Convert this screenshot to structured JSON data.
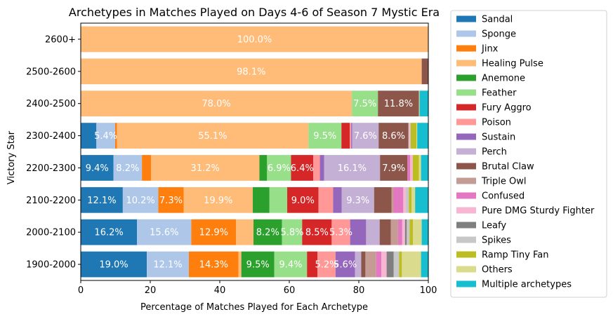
{
  "chart_data": {
    "type": "bar",
    "orientation": "horizontal",
    "stacked": true,
    "title": "Archetypes in Matches Played on Days 4-6 of Season 7 Mystic Era",
    "xlabel": "Percentage of Matches Played for Each Archetype",
    "ylabel": "Victory Star",
    "xlim": [
      0,
      100
    ],
    "xticks": [
      "0",
      "20",
      "40",
      "60",
      "80",
      "100"
    ],
    "legend_position": "outside-right",
    "categories": [
      "1900-2000",
      "2000-2100",
      "2100-2200",
      "2200-2300",
      "2300-2400",
      "2400-2500",
      "2500-2600",
      "2600+"
    ],
    "series": [
      {
        "name": "Sandal",
        "color": "#1f77b4",
        "values": [
          19.0,
          16.2,
          12.1,
          9.4,
          4.5,
          0,
          0,
          0
        ]
      },
      {
        "name": "Sponge",
        "color": "#aec7e8",
        "values": [
          12.1,
          15.6,
          10.2,
          8.2,
          5.4,
          0,
          0,
          0
        ]
      },
      {
        "name": "Jinx",
        "color": "#ff7f0e",
        "values": [
          14.3,
          12.9,
          7.3,
          2.6,
          0.5,
          0,
          0,
          0
        ]
      },
      {
        "name": "Healing Pulse",
        "color": "#ffbb78",
        "values": [
          0.8,
          5.0,
          19.9,
          31.2,
          55.1,
          78.0,
          98.1,
          100.0
        ]
      },
      {
        "name": "Anemone",
        "color": "#2ca02c",
        "values": [
          9.5,
          8.2,
          4.8,
          2.2,
          0,
          0,
          0,
          0
        ]
      },
      {
        "name": "Feather",
        "color": "#98df8a",
        "values": [
          9.4,
          5.8,
          5.1,
          6.9,
          9.5,
          7.5,
          0,
          0
        ]
      },
      {
        "name": "Fury Aggro",
        "color": "#d62728",
        "values": [
          3.0,
          8.5,
          9.0,
          6.4,
          2.4,
          0,
          0,
          0
        ]
      },
      {
        "name": "Poison",
        "color": "#ff9896",
        "values": [
          5.2,
          5.3,
          4.2,
          1.9,
          0.4,
          0,
          0,
          0
        ]
      },
      {
        "name": "Sustain",
        "color": "#9467bd",
        "values": [
          5.6,
          4.6,
          2.5,
          1.2,
          0.3,
          0,
          0,
          0
        ]
      },
      {
        "name": "Perch",
        "color": "#c5b0d5",
        "values": [
          1.8,
          3.9,
          9.3,
          16.1,
          7.6,
          0,
          0,
          0
        ]
      },
      {
        "name": "Brutal Claw",
        "color": "#8c564b",
        "values": [
          1.2,
          3.2,
          5.0,
          7.9,
          8.6,
          11.8,
          1.9,
          0
        ]
      },
      {
        "name": "Triple Owl",
        "color": "#c49c94",
        "values": [
          3.1,
          2.1,
          0.6,
          0,
          0,
          0,
          0,
          0
        ]
      },
      {
        "name": "Confused",
        "color": "#e377c2",
        "values": [
          1.5,
          1.2,
          2.8,
          0.8,
          0,
          0,
          0,
          0
        ]
      },
      {
        "name": "Pure DMG Sturdy Fighter",
        "color": "#f7b6d2",
        "values": [
          1.5,
          0.8,
          0.7,
          0.7,
          0.3,
          0,
          0,
          0
        ]
      },
      {
        "name": "Leafy",
        "color": "#7f7f7f",
        "values": [
          2.0,
          0.5,
          0,
          0,
          0,
          0,
          0,
          0
        ]
      },
      {
        "name": "Spikes",
        "color": "#c7c7c7",
        "values": [
          1.6,
          0.8,
          0.9,
          0,
          0.3,
          0,
          0,
          0
        ]
      },
      {
        "name": "Ramp Tiny Fan",
        "color": "#bcbd22",
        "values": [
          0.8,
          1.0,
          0.8,
          1.8,
          1.7,
          0,
          0,
          0
        ]
      },
      {
        "name": "Others",
        "color": "#dbdb8d",
        "values": [
          5.5,
          2.5,
          1.0,
          0.6,
          0.2,
          0.2,
          0,
          0
        ]
      },
      {
        "name": "Multiple archetypes",
        "color": "#17becf",
        "values": [
          2.1,
          1.9,
          3.8,
          2.1,
          3.2,
          2.5,
          0,
          0
        ]
      }
    ],
    "labels": [
      {
        "series": "Sandal",
        "category": "1900-2000",
        "text": "19.0%"
      },
      {
        "series": "Sponge",
        "category": "1900-2000",
        "text": "12.1%"
      },
      {
        "series": "Jinx",
        "category": "1900-2000",
        "text": "14.3%"
      },
      {
        "series": "Anemone",
        "category": "1900-2000",
        "text": "9.5%"
      },
      {
        "series": "Feather",
        "category": "1900-2000",
        "text": "9.4%"
      },
      {
        "series": "Poison",
        "category": "1900-2000",
        "text": "5.2%"
      },
      {
        "series": "Sustain",
        "category": "1900-2000",
        "text": "5.6%"
      },
      {
        "series": "Sandal",
        "category": "2000-2100",
        "text": "16.2%"
      },
      {
        "series": "Sponge",
        "category": "2000-2100",
        "text": "15.6%"
      },
      {
        "series": "Jinx",
        "category": "2000-2100",
        "text": "12.9%"
      },
      {
        "series": "Anemone",
        "category": "2000-2100",
        "text": "8.2%"
      },
      {
        "series": "Feather",
        "category": "2000-2100",
        "text": "5.8%"
      },
      {
        "series": "Fury Aggro",
        "category": "2000-2100",
        "text": "8.5%"
      },
      {
        "series": "Poison",
        "category": "2000-2100",
        "text": "5.3%"
      },
      {
        "series": "Sandal",
        "category": "2100-2200",
        "text": "12.1%"
      },
      {
        "series": "Sponge",
        "category": "2100-2200",
        "text": "10.2%"
      },
      {
        "series": "Jinx",
        "category": "2100-2200",
        "text": "7.3%"
      },
      {
        "series": "Healing Pulse",
        "category": "2100-2200",
        "text": "19.9%"
      },
      {
        "series": "Fury Aggro",
        "category": "2100-2200",
        "text": "9.0%"
      },
      {
        "series": "Perch",
        "category": "2100-2200",
        "text": "9.3%"
      },
      {
        "series": "Sandal",
        "category": "2200-2300",
        "text": "9.4%"
      },
      {
        "series": "Sponge",
        "category": "2200-2300",
        "text": "8.2%"
      },
      {
        "series": "Healing Pulse",
        "category": "2200-2300",
        "text": "31.2%"
      },
      {
        "series": "Feather",
        "category": "2200-2300",
        "text": "6.9%"
      },
      {
        "series": "Fury Aggro",
        "category": "2200-2300",
        "text": "6.4%"
      },
      {
        "series": "Perch",
        "category": "2200-2300",
        "text": "16.1%"
      },
      {
        "series": "Brutal Claw",
        "category": "2200-2300",
        "text": "7.9%"
      },
      {
        "series": "Sponge",
        "category": "2300-2400",
        "text": "5.4%"
      },
      {
        "series": "Healing Pulse",
        "category": "2300-2400",
        "text": "55.1%"
      },
      {
        "series": "Feather",
        "category": "2300-2400",
        "text": "9.5%"
      },
      {
        "series": "Perch",
        "category": "2300-2400",
        "text": "7.6%"
      },
      {
        "series": "Brutal Claw",
        "category": "2300-2400",
        "text": "8.6%"
      },
      {
        "series": "Healing Pulse",
        "category": "2400-2500",
        "text": "78.0%"
      },
      {
        "series": "Feather",
        "category": "2400-2500",
        "text": "7.5%"
      },
      {
        "series": "Brutal Claw",
        "category": "2400-2500",
        "text": "11.8%"
      },
      {
        "series": "Healing Pulse",
        "category": "2500-2600",
        "text": "98.1%"
      },
      {
        "series": "Healing Pulse",
        "category": "2600+",
        "text": "100.0%"
      }
    ]
  }
}
